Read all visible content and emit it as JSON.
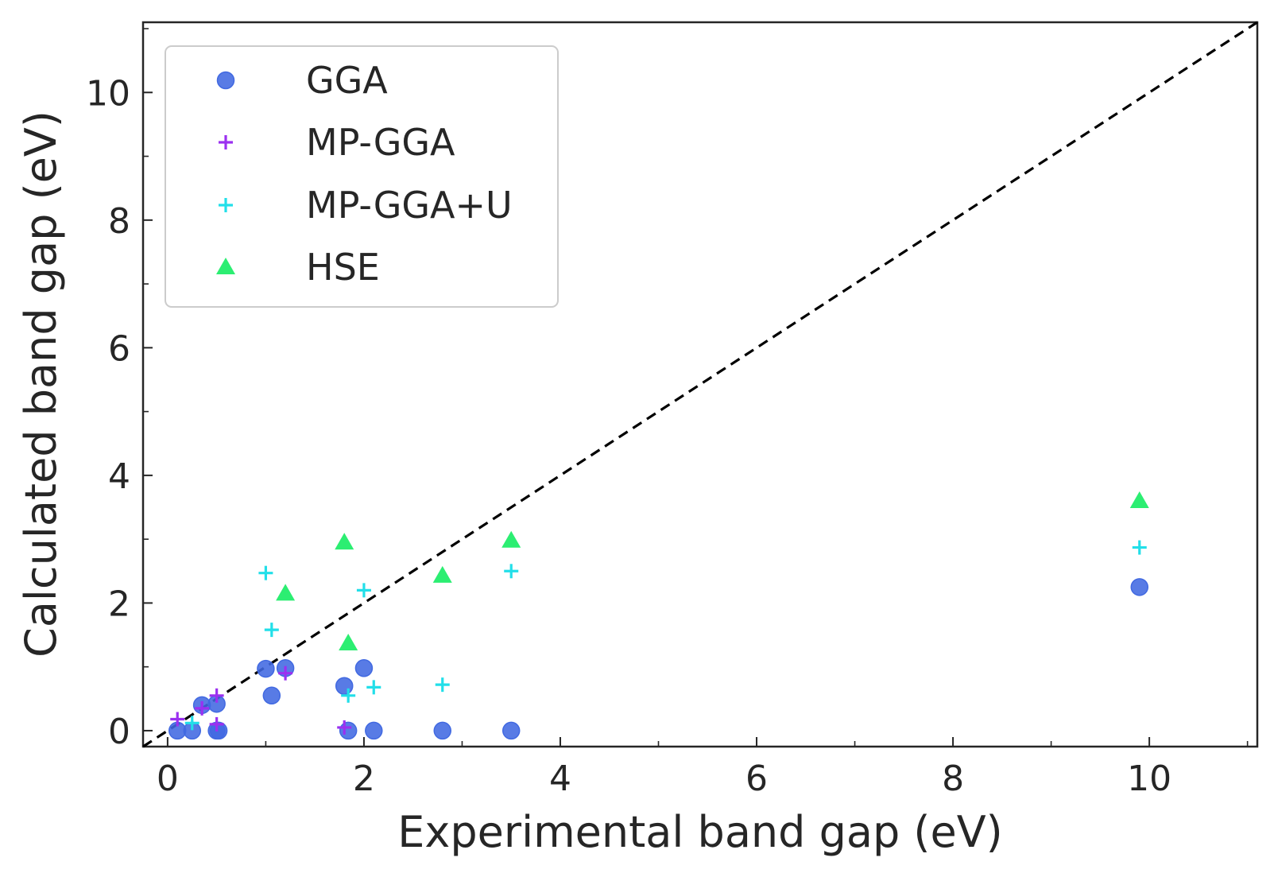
{
  "chart_data": {
    "type": "scatter",
    "xlabel": "Experimental band gap (eV)",
    "ylabel": "Calculated band gap (eV)",
    "xlim": [
      -0.25,
      11.1
    ],
    "ylim": [
      -0.25,
      11.1
    ],
    "xticks": [
      0,
      2,
      4,
      6,
      8,
      10
    ],
    "yticks": [
      0,
      2,
      4,
      6,
      8,
      10
    ],
    "x_minor_ticks": [
      1,
      3,
      5,
      7,
      9,
      11
    ],
    "y_minor_ticks": [
      1,
      3,
      5,
      7,
      9,
      11
    ],
    "xtick_labels": [
      "0",
      "2",
      "4",
      "6",
      "8",
      "10"
    ],
    "ytick_labels": [
      "0",
      "2",
      "4",
      "6",
      "8",
      "10"
    ],
    "grid": false,
    "legend_position": "top-left",
    "reference_line": {
      "type": "y=x",
      "style": "dashed",
      "color": "#000000"
    },
    "series": [
      {
        "name": "GGA",
        "marker": "circle",
        "color": "#4169e1",
        "points": [
          [
            0.1,
            0.0
          ],
          [
            0.25,
            0.0
          ],
          [
            0.35,
            0.4
          ],
          [
            0.5,
            0.42
          ],
          [
            0.5,
            0.0
          ],
          [
            0.52,
            0.0
          ],
          [
            1.0,
            0.97
          ],
          [
            1.06,
            0.55
          ],
          [
            1.2,
            0.98
          ],
          [
            1.8,
            0.7
          ],
          [
            1.84,
            0.0
          ],
          [
            2.0,
            0.98
          ],
          [
            2.1,
            0.0
          ],
          [
            2.8,
            0.0
          ],
          [
            3.5,
            0.0
          ],
          [
            9.9,
            2.25
          ]
        ]
      },
      {
        "name": "MP-GGA",
        "marker": "plus",
        "color": "#9b30f0",
        "points": [
          [
            0.1,
            0.18
          ],
          [
            0.35,
            0.35
          ],
          [
            0.5,
            0.55
          ],
          [
            0.5,
            0.1
          ],
          [
            1.2,
            0.9
          ],
          [
            1.8,
            0.05
          ]
        ]
      },
      {
        "name": "MP-GGA+U",
        "marker": "plus",
        "color": "#22dfe9",
        "points": [
          [
            0.25,
            0.12
          ],
          [
            1.0,
            2.47
          ],
          [
            1.06,
            1.58
          ],
          [
            1.84,
            0.55
          ],
          [
            2.0,
            2.2
          ],
          [
            2.1,
            0.68
          ],
          [
            2.8,
            0.72
          ],
          [
            3.5,
            2.5
          ],
          [
            9.9,
            2.87
          ]
        ]
      },
      {
        "name": "HSE",
        "marker": "triangle",
        "color": "#21ed6a",
        "points": [
          [
            1.2,
            2.15
          ],
          [
            1.8,
            2.95
          ],
          [
            1.84,
            1.37
          ],
          [
            2.8,
            2.43
          ],
          [
            3.5,
            2.98
          ],
          [
            9.9,
            3.6
          ]
        ]
      }
    ]
  }
}
